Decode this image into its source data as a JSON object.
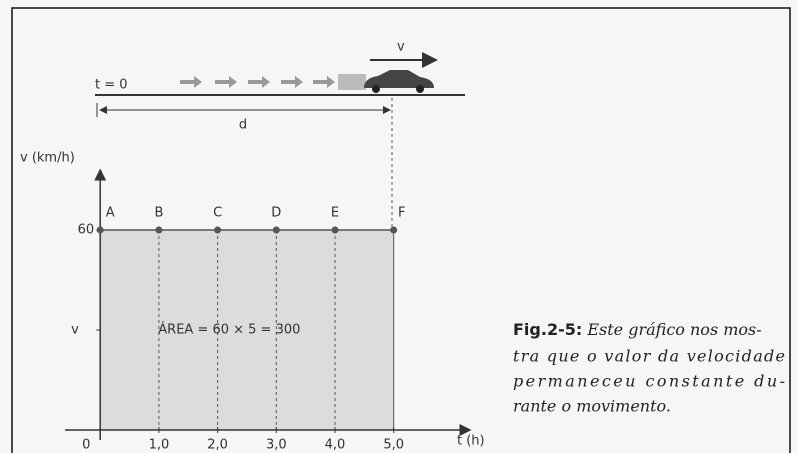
{
  "chart_data": {
    "type": "line",
    "x_label": "t (h)",
    "y_label": "v (km/h)",
    "x": [
      0,
      1,
      2,
      3,
      4,
      5
    ],
    "values": [
      60,
      60,
      60,
      60,
      60,
      60
    ],
    "point_labels": [
      "A",
      "B",
      "C",
      "D",
      "E",
      "F"
    ],
    "color": "#555555",
    "xlim": [
      -0.6,
      6.3
    ],
    "ylim": [
      0,
      78
    ],
    "xticks": [
      0,
      {
        "value": 1,
        "label": "1,0"
      },
      {
        "value": 2,
        "label": "2,0"
      },
      {
        "value": 3,
        "label": "3,0"
      },
      {
        "value": 4,
        "label": "4,0"
      },
      {
        "value": 5,
        "label": "5,0"
      }
    ],
    "yticks": [
      60
    ],
    "y_symbol": "v",
    "area_label": "ÁREA = 60 × 5 = 300",
    "motion": {
      "start_label": "t = 0",
      "velocity_label": "v",
      "distance_label": "d"
    }
  },
  "caption": {
    "label": "Fig.2-5:",
    "lines": [
      "Este gráfico nos mos-",
      "tra que o valor da velocidade",
      "permaneceu constante du-",
      "rante o movimento."
    ]
  }
}
